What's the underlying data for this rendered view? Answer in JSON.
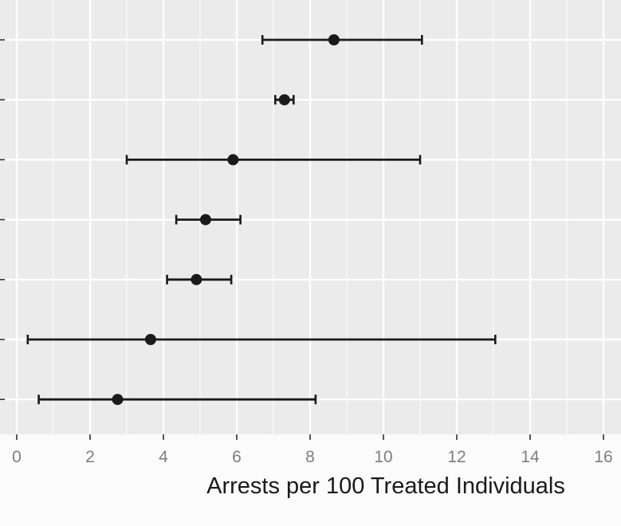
{
  "chart_data": {
    "type": "errorbar",
    "title": "",
    "xlabel": "Arrests per 100 Treated Individuals",
    "ylabel": "",
    "xlim": [
      -0.5,
      16
    ],
    "xticks": [
      0,
      2,
      4,
      6,
      8,
      10,
      12,
      14,
      16
    ],
    "tick_labels": [
      "0",
      "2",
      "4",
      "6",
      "8",
      "10",
      "12",
      "14",
      "16"
    ],
    "grid": true,
    "points": [
      {
        "estimate": 8.65,
        "lower": 6.7,
        "upper": 11.05
      },
      {
        "estimate": 7.3,
        "lower": 7.05,
        "upper": 7.55
      },
      {
        "estimate": 5.9,
        "lower": 3.0,
        "upper": 11.0
      },
      {
        "estimate": 5.15,
        "lower": 4.35,
        "upper": 6.1
      },
      {
        "estimate": 4.9,
        "lower": 4.1,
        "upper": 5.85
      },
      {
        "estimate": 3.65,
        "lower": 0.3,
        "upper": 13.05
      },
      {
        "estimate": 2.75,
        "lower": 0.6,
        "upper": 8.15
      }
    ],
    "colors": {
      "panel": "#ebebeb",
      "grid": "#ffffff",
      "marks": "#1a1a1a",
      "tick_text": "#7f7f7f"
    }
  }
}
